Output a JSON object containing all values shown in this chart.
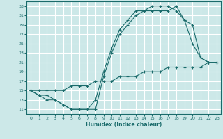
{
  "title": "",
  "xlabel": "Humidex (Indice chaleur)",
  "bg_color": "#cce8e8",
  "grid_color": "#ffffff",
  "line_color": "#1a6b6b",
  "xlim": [
    -0.5,
    23.5
  ],
  "ylim": [
    10,
    34
  ],
  "xticks": [
    0,
    1,
    2,
    3,
    4,
    5,
    6,
    7,
    8,
    9,
    10,
    11,
    12,
    13,
    14,
    15,
    16,
    17,
    18,
    19,
    20,
    21,
    22,
    23
  ],
  "yticks": [
    11,
    13,
    15,
    17,
    19,
    21,
    23,
    25,
    27,
    29,
    31,
    33
  ],
  "line1_x": [
    0,
    1,
    2,
    3,
    4,
    5,
    6,
    7,
    8,
    9,
    10,
    11,
    12,
    13,
    14,
    15,
    16,
    17,
    18,
    19,
    20,
    21,
    22,
    23
  ],
  "line1_y": [
    15,
    14,
    13,
    13,
    12,
    11,
    11,
    11,
    13,
    19,
    24,
    28,
    30,
    32,
    32,
    33,
    33,
    33,
    32,
    30,
    29,
    22,
    21,
    21
  ],
  "line2_x": [
    0,
    1,
    2,
    3,
    4,
    5,
    6,
    7,
    8,
    9,
    10,
    11,
    12,
    13,
    14,
    15,
    16,
    17,
    18,
    19,
    20,
    21,
    22,
    23
  ],
  "line2_y": [
    15,
    14,
    14,
    13,
    12,
    11,
    11,
    11,
    11,
    18,
    23,
    27,
    29,
    31,
    32,
    32,
    32,
    32,
    33,
    30,
    25,
    22,
    21,
    21
  ],
  "line3_x": [
    0,
    1,
    2,
    3,
    4,
    5,
    6,
    7,
    8,
    9,
    10,
    11,
    12,
    13,
    14,
    15,
    16,
    17,
    18,
    19,
    20,
    21,
    22,
    23
  ],
  "line3_y": [
    15,
    15,
    15,
    15,
    15,
    16,
    16,
    16,
    17,
    17,
    17,
    18,
    18,
    18,
    19,
    19,
    19,
    20,
    20,
    20,
    20,
    20,
    21,
    21
  ]
}
